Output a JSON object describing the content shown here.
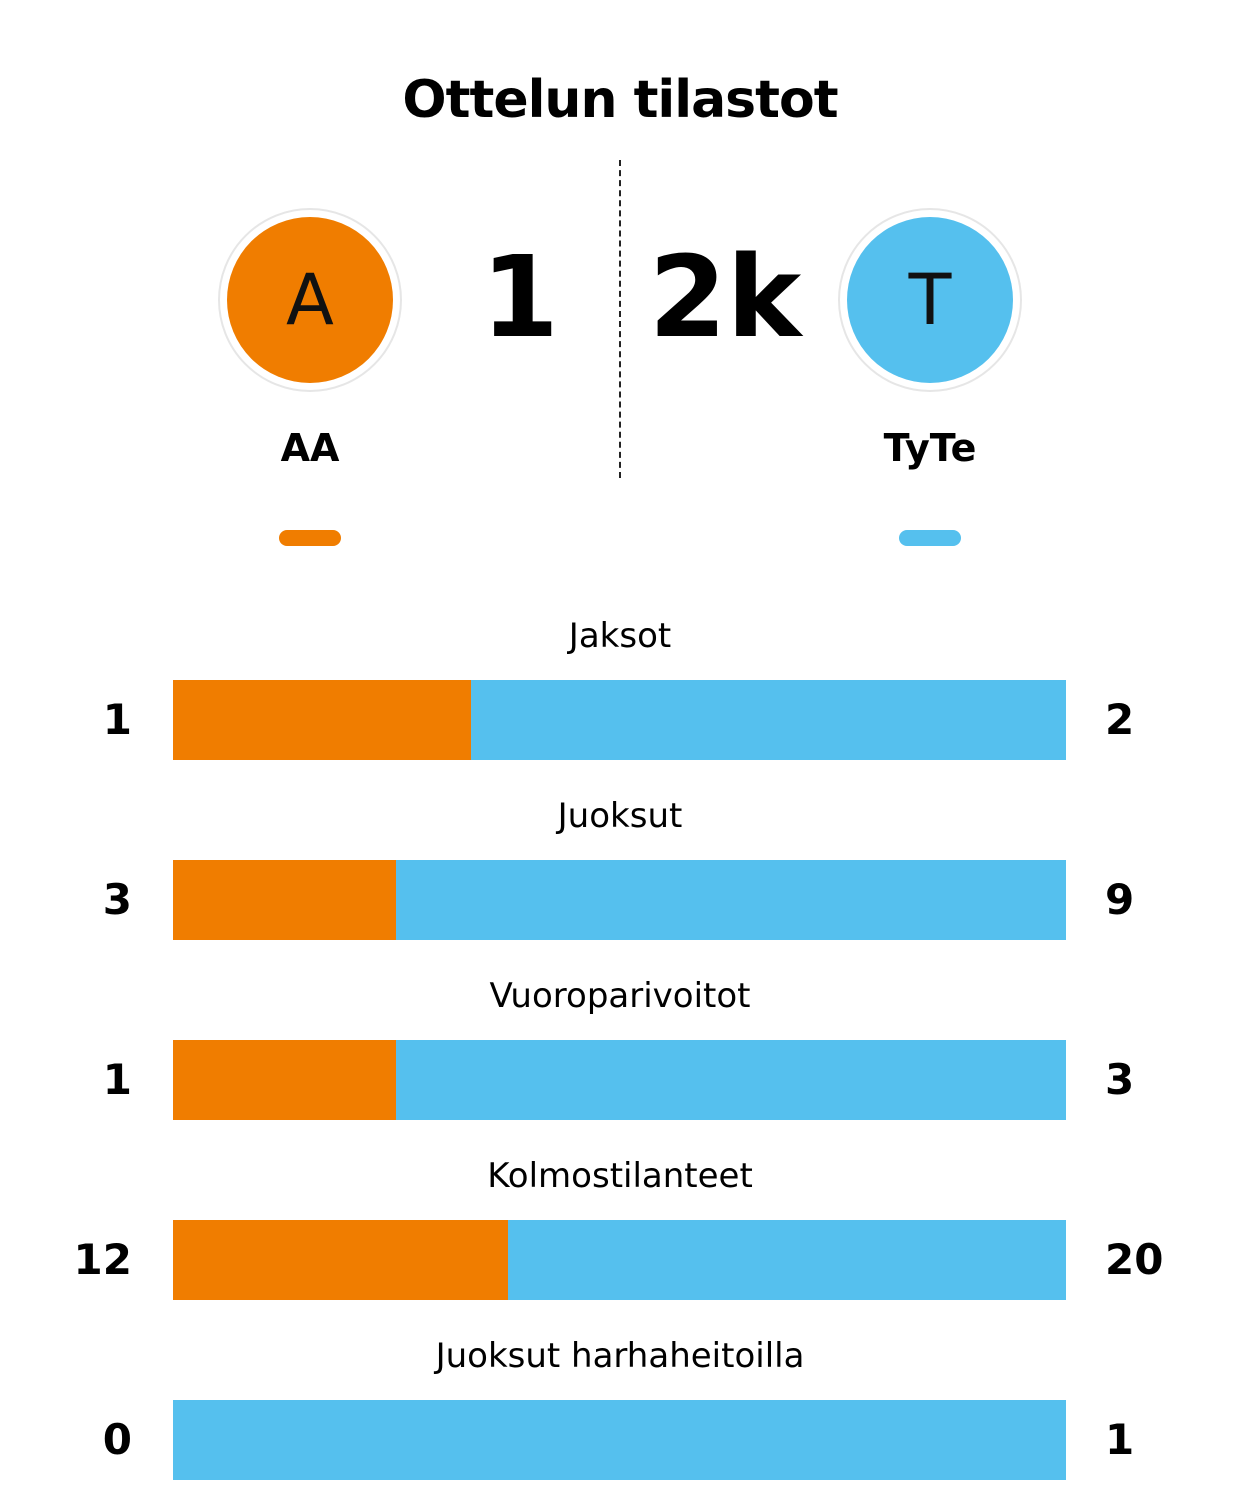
{
  "title": "Ottelun tilastot",
  "teams": {
    "home": {
      "name": "AA",
      "initial": "A",
      "score": "1",
      "color": "#f07d00"
    },
    "away": {
      "name": "TyTe",
      "initial": "T",
      "score": "2k",
      "color": "#55c0ee"
    }
  },
  "chart_data": {
    "type": "bar",
    "categories": [
      "Jaksot",
      "Juoksut",
      "Vuoroparivoitot",
      "Kolmostilanteet",
      "Juoksut harhaheitoilla"
    ],
    "series": [
      {
        "name": "AA",
        "values": [
          1,
          3,
          1,
          12,
          0
        ]
      },
      {
        "name": "TyTe",
        "values": [
          2,
          9,
          3,
          20,
          1
        ]
      }
    ],
    "title": "Ottelun tilastot",
    "xlabel": "",
    "ylabel": ""
  }
}
